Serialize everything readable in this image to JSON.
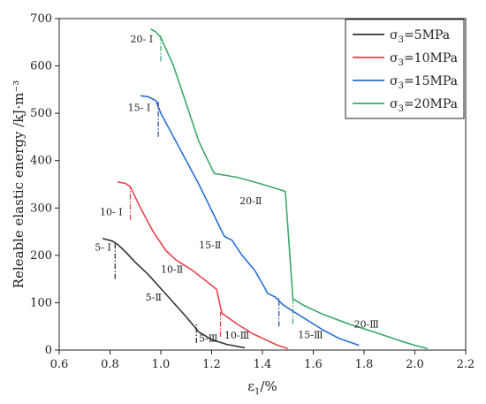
{
  "chart_data": {
    "type": "line",
    "xlabel_base": "ε",
    "xlabel_sub": "1",
    "xlabel_suffix": "/%",
    "ylabel": "Releable elastic energy /kJ·m⁻³",
    "xlim": [
      0.6,
      2.2
    ],
    "ylim": [
      0,
      700
    ],
    "xticks": [
      "0.6",
      "0.8",
      "1.0",
      "1.2",
      "1.4",
      "1.6",
      "1.8",
      "2.0",
      "2.2"
    ],
    "yticks": [
      "0",
      "100",
      "200",
      "300",
      "400",
      "500",
      "600",
      "700"
    ],
    "grid": false,
    "legend_position": "top-right",
    "series": [
      {
        "name": "σ3=5MPa",
        "legend_base": "σ",
        "legend_sub": "3",
        "legend_suffix": "=5MPa",
        "color": "#333333",
        "points": [
          [
            0.77,
            236
          ],
          [
            0.81,
            230
          ],
          [
            0.83,
            223
          ],
          [
            0.86,
            208
          ],
          [
            0.9,
            185
          ],
          [
            0.95,
            160
          ],
          [
            1.0,
            130
          ],
          [
            1.05,
            100
          ],
          [
            1.1,
            70
          ],
          [
            1.15,
            38
          ],
          [
            1.2,
            22
          ],
          [
            1.26,
            12
          ],
          [
            1.33,
            5
          ]
        ]
      },
      {
        "name": "σ3=10MPa",
        "legend_base": "σ",
        "legend_sub": "3",
        "legend_suffix": "=10MPa",
        "color": "#e8434b",
        "points": [
          [
            0.83,
            355
          ],
          [
            0.86,
            352
          ],
          [
            0.88,
            345
          ],
          [
            0.92,
            300
          ],
          [
            0.97,
            250
          ],
          [
            1.02,
            210
          ],
          [
            1.06,
            190
          ],
          [
            1.12,
            170
          ],
          [
            1.18,
            145
          ],
          [
            1.22,
            128
          ],
          [
            1.24,
            78
          ],
          [
            1.3,
            55
          ],
          [
            1.36,
            35
          ],
          [
            1.42,
            20
          ],
          [
            1.46,
            10
          ],
          [
            1.5,
            3
          ]
        ]
      },
      {
        "name": "σ3=15MPa",
        "legend_base": "σ",
        "legend_sub": "3",
        "legend_suffix": "=15MPa",
        "color": "#2a6fd6",
        "points": [
          [
            0.92,
            537
          ],
          [
            0.95,
            535
          ],
          [
            0.98,
            527
          ],
          [
            1.0,
            500
          ],
          [
            1.05,
            450
          ],
          [
            1.1,
            400
          ],
          [
            1.15,
            350
          ],
          [
            1.2,
            295
          ],
          [
            1.25,
            240
          ],
          [
            1.28,
            232
          ],
          [
            1.32,
            200
          ],
          [
            1.37,
            168
          ],
          [
            1.4,
            140
          ],
          [
            1.42,
            120
          ],
          [
            1.45,
            112
          ],
          [
            1.48,
            96
          ],
          [
            1.52,
            82
          ],
          [
            1.58,
            62
          ],
          [
            1.64,
            42
          ],
          [
            1.7,
            25
          ],
          [
            1.78,
            10
          ]
        ]
      },
      {
        "name": "σ3=20MPa",
        "legend_base": "σ",
        "legend_sub": "3",
        "legend_suffix": "=20MPa",
        "color": "#3aa86a",
        "points": [
          [
            0.96,
            678
          ],
          [
            0.98,
            672
          ],
          [
            1.0,
            660
          ],
          [
            1.05,
            600
          ],
          [
            1.1,
            520
          ],
          [
            1.15,
            440
          ],
          [
            1.21,
            373
          ],
          [
            1.3,
            365
          ],
          [
            1.4,
            350
          ],
          [
            1.49,
            335
          ],
          [
            1.52,
            108
          ],
          [
            1.56,
            95
          ],
          [
            1.64,
            75
          ],
          [
            1.74,
            55
          ],
          [
            1.84,
            38
          ],
          [
            1.94,
            20
          ],
          [
            2.0,
            10
          ],
          [
            2.05,
            3
          ]
        ]
      }
    ],
    "markers": [
      {
        "x": 0.82,
        "y1": 150,
        "y2": 225,
        "color": "#222",
        "label": "5- Ⅰ",
        "lx": 0.74,
        "ly": 210
      },
      {
        "x": 1.14,
        "y1": 15,
        "y2": 55,
        "color": "#222",
        "label": "5-Ⅲ",
        "lx": 1.15,
        "ly": 18
      },
      {
        "x": 0.88,
        "y1": 275,
        "y2": 345,
        "color": "#e8434b",
        "label": "10- Ⅰ",
        "lx": 0.76,
        "ly": 285
      },
      {
        "x": 1.235,
        "y1": 28,
        "y2": 80,
        "color": "#e8434b",
        "label": "10-Ⅲ",
        "lx": 1.25,
        "ly": 24
      },
      {
        "x": 0.99,
        "y1": 450,
        "y2": 525,
        "color": "#1f45a8",
        "label": "15- Ⅰ",
        "lx": 0.87,
        "ly": 505
      },
      {
        "x": 1.465,
        "y1": 50,
        "y2": 110,
        "color": "#1f45a8",
        "label": "15-Ⅲ",
        "lx": 1.54,
        "ly": 25
      },
      {
        "x": 1.0,
        "y1": 610,
        "y2": 665,
        "color": "#3aa86a",
        "label": "20- Ⅰ",
        "lx": 0.88,
        "ly": 650
      },
      {
        "x": 1.52,
        "y1": 55,
        "y2": 108,
        "color": "#3aa86a",
        "label": "20-Ⅲ",
        "lx": 1.76,
        "ly": 48
      }
    ],
    "annotations": [
      {
        "text": "5-Ⅱ",
        "x": 0.94,
        "y": 105
      },
      {
        "text": "10-Ⅱ",
        "x": 1.0,
        "y": 163
      },
      {
        "text": "15-Ⅱ",
        "x": 1.15,
        "y": 215
      },
      {
        "text": "20-Ⅱ",
        "x": 1.31,
        "y": 308
      }
    ]
  }
}
